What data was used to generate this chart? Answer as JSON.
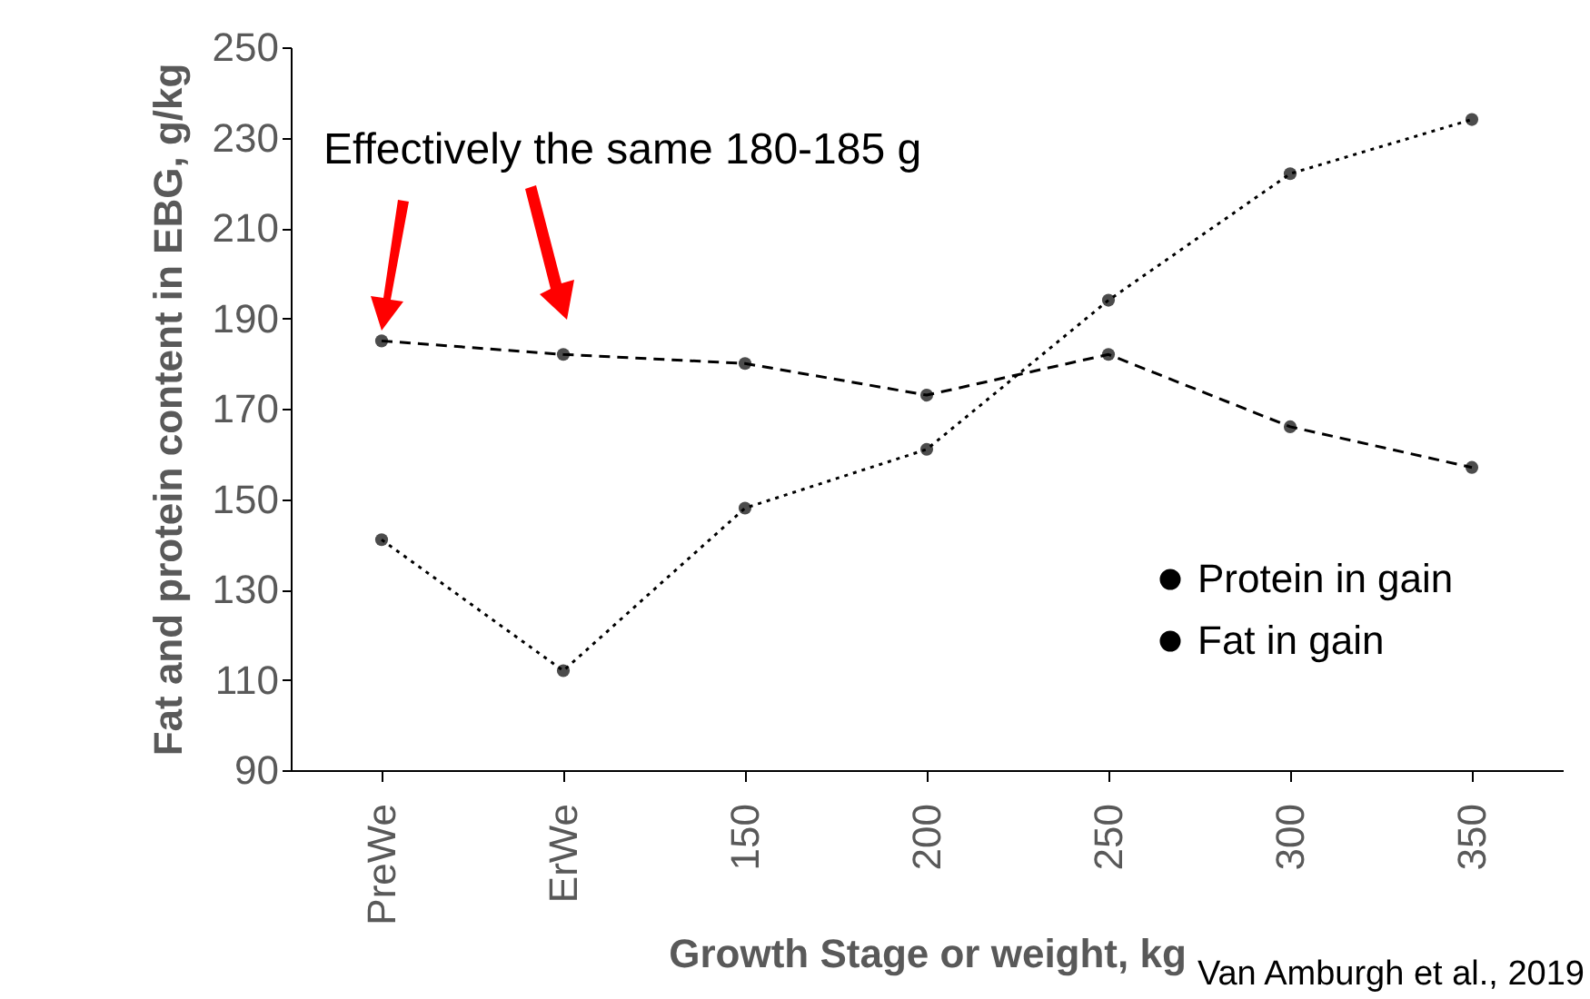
{
  "chart_data": {
    "type": "line",
    "xlabel": "Growth Stage or weight, kg",
    "ylabel": "Fat and protein content in EBG, g/kg",
    "categories": [
      "PreWe",
      "ErWe",
      "150",
      "200",
      "250",
      "300",
      "350"
    ],
    "series": [
      {
        "name": "Protein in gain",
        "color": "#000000",
        "line_style": "dashed",
        "values": [
          185,
          182,
          180,
          173,
          182,
          166,
          157
        ]
      },
      {
        "name": "Fat in gain",
        "color": "#000000",
        "line_style": "dotted",
        "values": [
          141,
          112,
          148,
          161,
          194,
          222,
          234
        ]
      }
    ],
    "ylim": [
      90,
      250
    ],
    "yticks": [
      90,
      110,
      130,
      150,
      170,
      190,
      210,
      230,
      250
    ],
    "grid": false,
    "marker": "circle",
    "legend": "bottom right",
    "annotations": [
      "Effectively the same 180-185 g",
      "Van Amburgh et al., 2019"
    ]
  }
}
